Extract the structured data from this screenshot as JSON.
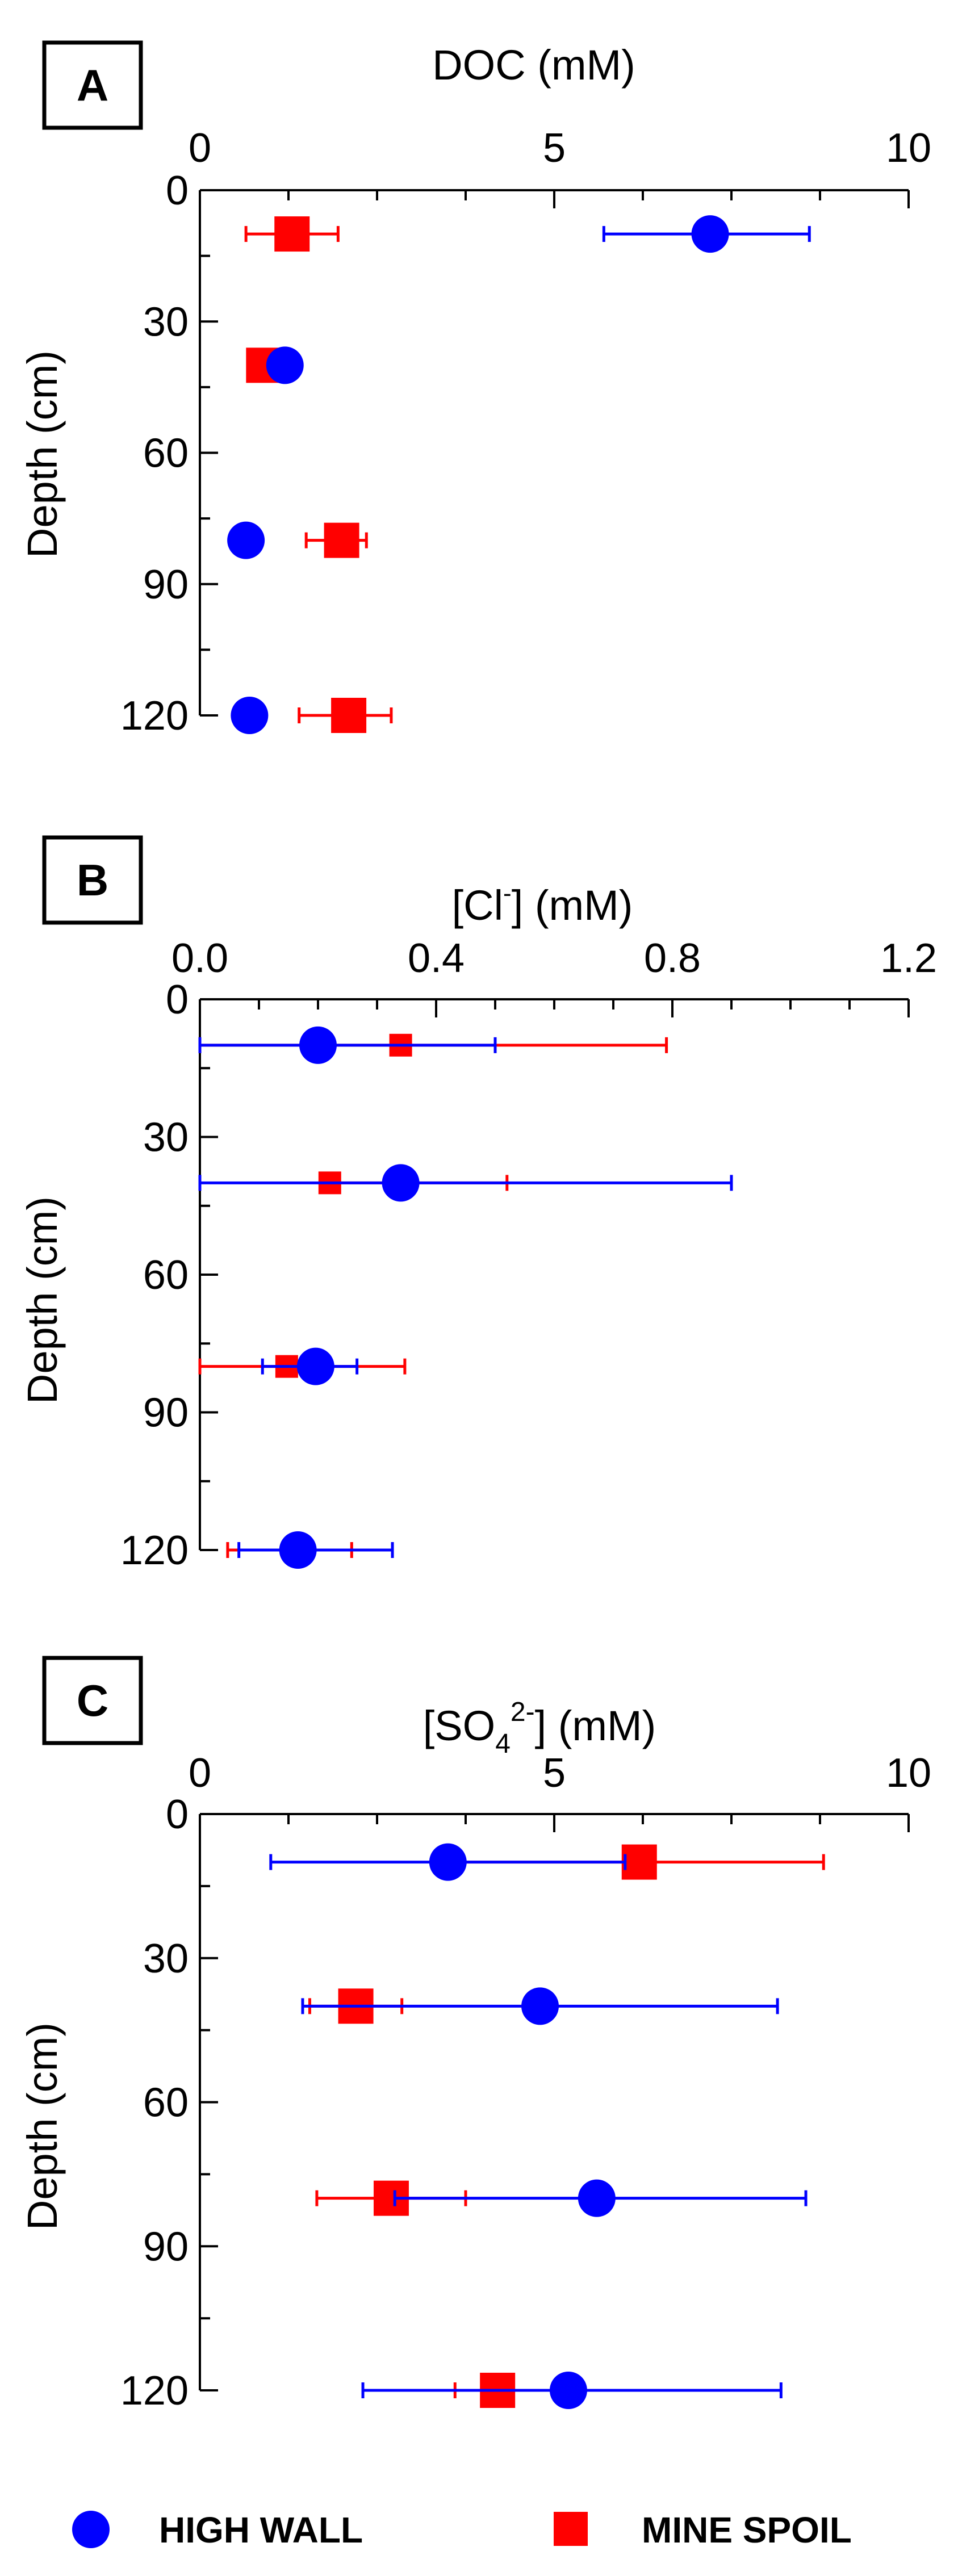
{
  "legend": {
    "high_wall": {
      "label": "HIGH WALL",
      "color": "#0000ff",
      "marker": "circle"
    },
    "mine_spoil": {
      "label": "MINE SPOIL",
      "color": "#ff0000",
      "marker": "square"
    }
  },
  "y_axis": {
    "label": "Depth (cm)",
    "ticks": [
      0,
      30,
      60,
      90,
      120
    ],
    "tick_labels": [
      "0",
      "30",
      "60",
      "90",
      "120"
    ],
    "range": [
      0,
      120
    ],
    "inverted": true
  },
  "chart_data": [
    {
      "type": "scatter",
      "panel": "A",
      "title": "DOC (mM)",
      "xlim": [
        0,
        10
      ],
      "xticks": [
        0,
        5,
        10
      ],
      "xtick_labels": [
        "0",
        "5",
        "10"
      ],
      "ylabel": "Depth (cm)",
      "series": [
        {
          "name": "HIGH WALL",
          "depth": [
            10,
            40,
            80,
            120
          ],
          "values": [
            7.2,
            1.2,
            0.65,
            0.7
          ],
          "err_low": [
            1.5,
            0,
            0,
            0
          ],
          "err_high": [
            1.4,
            0,
            0,
            0
          ]
        },
        {
          "name": "MINE SPOIL",
          "depth": [
            10,
            40,
            80,
            120
          ],
          "values": [
            1.3,
            0.9,
            2.0,
            2.1
          ],
          "err_low": [
            0.65,
            0,
            0.5,
            0.7
          ],
          "err_high": [
            0.65,
            0,
            0.35,
            0.6
          ]
        }
      ]
    },
    {
      "type": "scatter",
      "panel": "B",
      "title": "[Cl-] (mM)",
      "title_main": "[Cl",
      "title_sup": "-",
      "title_end": "] (mM)",
      "xlim": [
        0,
        1.2
      ],
      "xticks": [
        0,
        0.4,
        0.8,
        1.2
      ],
      "xtick_labels": [
        "0.0",
        "0.4",
        "0.8",
        "1.2"
      ],
      "ylabel": "Depth (cm)",
      "series": [
        {
          "name": "HIGH WALL",
          "depth": [
            10,
            40,
            80,
            120
          ],
          "values": [
            0.2,
            0.34,
            0.196,
            0.166
          ],
          "err_low": [
            0.2,
            0.34,
            0.09,
            0.1
          ],
          "err_high": [
            0.3,
            0.56,
            0.07,
            0.16
          ]
        },
        {
          "name": "MINE SPOIL",
          "depth": [
            10,
            40,
            80,
            120
          ],
          "values": [
            0.34,
            0.22,
            0.147,
            0.167
          ],
          "err_low": [
            0.34,
            0,
            0.147,
            0.12
          ],
          "err_high": [
            0.45,
            0.3,
            0.2,
            0.09
          ]
        }
      ]
    },
    {
      "type": "scatter",
      "panel": "C",
      "title": "[SO42-] (mM)",
      "title_main": "[SO",
      "title_sub": "4",
      "title_sup": "2-",
      "title_end": "] (mM)",
      "xlim": [
        0,
        10
      ],
      "xticks": [
        0,
        5,
        10
      ],
      "xtick_labels": [
        "0",
        "5",
        "10"
      ],
      "ylabel": "Depth (cm)",
      "series": [
        {
          "name": "HIGH WALL",
          "depth": [
            10,
            40,
            80,
            120
          ],
          "values": [
            3.5,
            4.8,
            5.6,
            5.2
          ],
          "err_low": [
            2.5,
            3.35,
            2.85,
            2.9
          ],
          "err_high": [
            2.5,
            3.35,
            2.95,
            3.0
          ]
        },
        {
          "name": "MINE SPOIL",
          "depth": [
            10,
            40,
            80,
            120
          ],
          "values": [
            6.2,
            2.2,
            2.7,
            4.2
          ],
          "err_low": [
            2.5,
            0.65,
            1.05,
            0.6
          ],
          "err_high": [
            2.6,
            0.65,
            1.05,
            0
          ]
        }
      ]
    }
  ]
}
